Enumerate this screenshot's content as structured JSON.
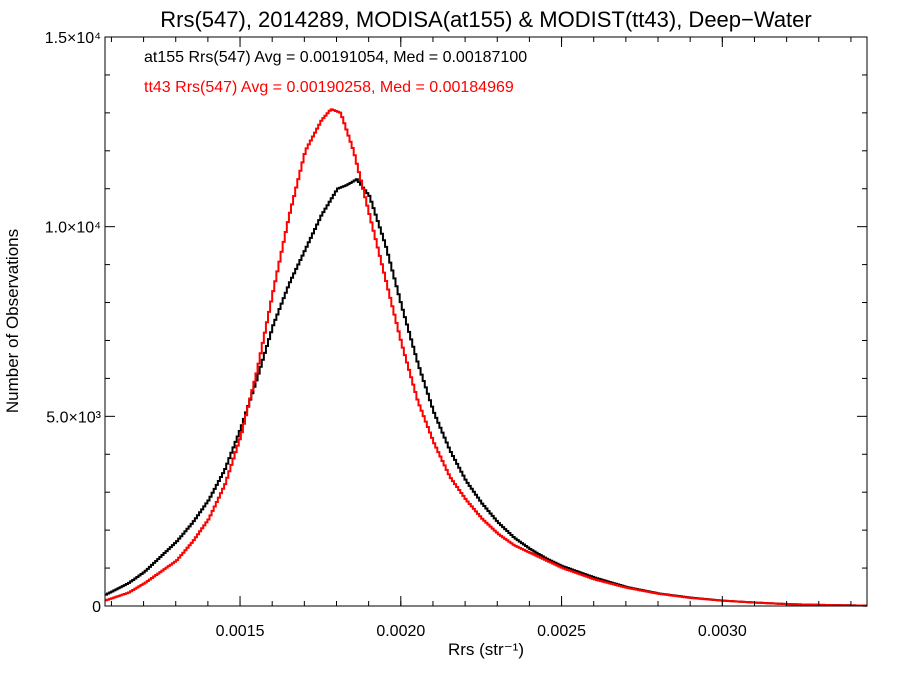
{
  "chart_data": {
    "type": "line",
    "style": "step-histogram",
    "title": "Rrs(547), 2014289, MODISA(at155) & MODIST(tt43), Deep−Water",
    "xlabel": "Rrs (str⁻¹)",
    "ylabel": "Number of Observations",
    "xlim": [
      0.00108,
      0.00345
    ],
    "ylim": [
      0,
      15000
    ],
    "x_ticks": [
      {
        "value": 0.0015,
        "label": "0.0015"
      },
      {
        "value": 0.002,
        "label": "0.0020"
      },
      {
        "value": 0.0025,
        "label": "0.0025"
      },
      {
        "value": 0.003,
        "label": "0.0030"
      }
    ],
    "y_ticks": [
      {
        "value": 0,
        "label": "0"
      },
      {
        "value": 5000,
        "label": "5.0×10³"
      },
      {
        "value": 10000,
        "label": "1.0×10⁴"
      },
      {
        "value": 15000,
        "label": "1.5×10⁴"
      }
    ],
    "grid": false,
    "legend_position": "top-left",
    "series": [
      {
        "name": "at155",
        "annotation": "at155 Rrs(547) Avg = 0.00191054, Med = 0.00187100",
        "color": "#000000",
        "x": [
          0.00108,
          0.00115,
          0.0012,
          0.00125,
          0.0013,
          0.00135,
          0.0014,
          0.00145,
          0.0015,
          0.00155,
          0.0016,
          0.00165,
          0.0017,
          0.00175,
          0.0018,
          0.00183,
          0.00186,
          0.0019,
          0.00195,
          0.002,
          0.00205,
          0.0021,
          0.00215,
          0.0022,
          0.00225,
          0.0023,
          0.00235,
          0.0024,
          0.00245,
          0.0025,
          0.0026,
          0.0027,
          0.0028,
          0.0029,
          0.003,
          0.0031,
          0.0032,
          0.0033,
          0.00345
        ],
        "y": [
          300,
          600,
          900,
          1300,
          1700,
          2200,
          2800,
          3600,
          4700,
          6000,
          7400,
          8500,
          9400,
          10300,
          11000,
          11100,
          11250,
          10800,
          9500,
          7900,
          6400,
          5100,
          4100,
          3300,
          2700,
          2200,
          1800,
          1500,
          1250,
          1050,
          750,
          500,
          330,
          220,
          140,
          90,
          50,
          30,
          10
        ]
      },
      {
        "name": "tt43",
        "annotation": "tt43 Rrs(547) Avg = 0.00190258, Med = 0.00184969",
        "color": "#ff0000",
        "x": [
          0.00108,
          0.00115,
          0.0012,
          0.00125,
          0.0013,
          0.00135,
          0.0014,
          0.00145,
          0.0015,
          0.00155,
          0.0016,
          0.00165,
          0.0017,
          0.00175,
          0.00178,
          0.00181,
          0.00185,
          0.0019,
          0.00195,
          0.002,
          0.00205,
          0.0021,
          0.00215,
          0.0022,
          0.00225,
          0.0023,
          0.00235,
          0.0024,
          0.00245,
          0.0025,
          0.0026,
          0.0027,
          0.0028,
          0.0029,
          0.003,
          0.0031,
          0.0032,
          0.0033,
          0.00345
        ],
        "y": [
          150,
          350,
          600,
          900,
          1200,
          1700,
          2300,
          3200,
          4500,
          6200,
          8300,
          10300,
          12000,
          12800,
          13100,
          13000,
          12000,
          10300,
          8600,
          6900,
          5400,
          4300,
          3400,
          2800,
          2300,
          1900,
          1600,
          1400,
          1200,
          1000,
          700,
          480,
          320,
          210,
          140,
          90,
          50,
          30,
          10
        ]
      }
    ]
  }
}
